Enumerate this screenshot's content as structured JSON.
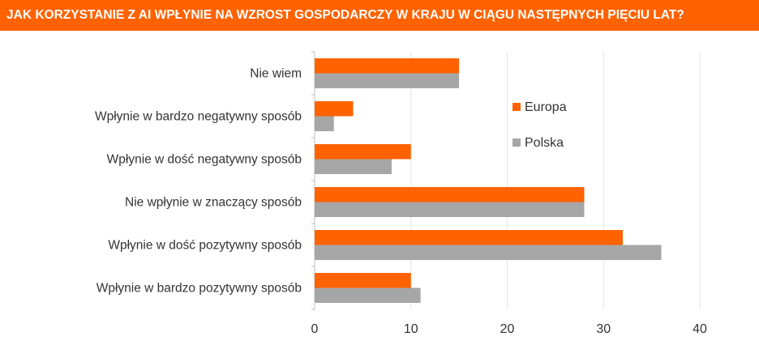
{
  "chart_data": {
    "type": "bar",
    "orientation": "horizontal",
    "title": "JAK KORZYSTANIE Z AI WPŁYNIE NA WZROST GOSPODARCZY W KRAJU W CIĄGU NASTĘPNYCH PIĘCIU LAT?",
    "categories": [
      "Nie wiem",
      "Wpłynie w bardzo negatywny sposób",
      "Wpłynie w dość negatywny sposób",
      "Nie wpłynie w znaczący sposób",
      "Wpłynie w dość pozytywny sposób",
      "Wpłynie w bardzo pozytywny sposób"
    ],
    "series": [
      {
        "name": "Europa",
        "color": "#FF6200",
        "values": [
          15,
          4,
          10,
          28,
          32,
          10
        ]
      },
      {
        "name": "Polska",
        "color": "#A6A6A6",
        "values": [
          15,
          2,
          8,
          28,
          36,
          11
        ]
      }
    ],
    "xlim": [
      0,
      40
    ],
    "xticks": [
      "0",
      "10",
      "20",
      "30",
      "40"
    ],
    "grid": true,
    "legend_position": "upper-middle"
  }
}
